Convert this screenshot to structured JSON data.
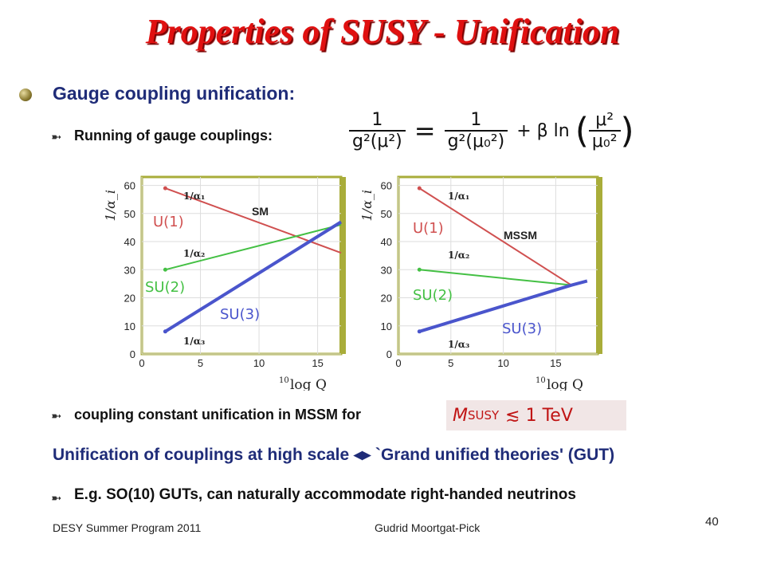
{
  "slide": {
    "title": "Properties of SUSY - Unification",
    "heading": "Gauge coupling unification:",
    "running_label": "Running of gauge couplings:",
    "formula": {
      "lhs_num": "1",
      "lhs_den": "g²(μ²)",
      "equals": "=",
      "rhs_num": "1",
      "rhs_den": "g²(μ₀²)",
      "plus_term": "+ β ln",
      "log_num": "μ²",
      "log_den": "μ₀²"
    },
    "coupling_label": "coupling constant unification in MSSM for",
    "msusy_text": "M",
    "msusy_sub": "SUSY",
    "msusy_rel": "≲ 1 TeV",
    "banner": "Unification of couplings at high scale ◂▸ `Grand unified theories' (GUT)",
    "example": "E.g. SO(10) GUTs, can naturally accommodate right-handed neutrinos",
    "footer_left": "DESY Summer Program 2011",
    "footer_center": "Gudrid Moortgat-Pick",
    "page_number": "40"
  },
  "colors": {
    "title": "#e01010",
    "heading": "#1f2c78",
    "u1": "#d05050",
    "su2": "#44c044",
    "su3": "#4a55cc",
    "frame": "#a9ad3a"
  },
  "chart_data": [
    {
      "type": "line",
      "title": "SM",
      "ylabel": "1/α_i",
      "xlabel": "log Q",
      "xlabel_prefix": "10",
      "xlim": [
        0,
        17
      ],
      "ylim": [
        0,
        63
      ],
      "xticks": [
        0,
        5,
        10,
        15
      ],
      "yticks": [
        0,
        10,
        20,
        30,
        40,
        50,
        60
      ],
      "grid": true,
      "series": [
        {
          "name": "1/α₁",
          "group_label": "U(1)",
          "color": "#d05050",
          "x": [
            2,
            17
          ],
          "y": [
            59,
            36
          ]
        },
        {
          "name": "1/α₂",
          "group_label": "SU(2)",
          "color": "#44c044",
          "x": [
            2,
            17
          ],
          "y": [
            30,
            46
          ]
        },
        {
          "name": "1/α₃",
          "group_label": "SU(3)",
          "color": "#4a55cc",
          "x": [
            2,
            17
          ],
          "y": [
            8,
            47
          ]
        }
      ]
    },
    {
      "type": "line",
      "title": "MSSM",
      "ylabel": "1/α_i",
      "xlabel": "log Q",
      "xlabel_prefix": "10",
      "xlim": [
        0,
        19
      ],
      "ylim": [
        0,
        63
      ],
      "xticks": [
        0,
        5,
        10,
        15
      ],
      "yticks": [
        0,
        10,
        20,
        30,
        40,
        50,
        60
      ],
      "grid": true,
      "series": [
        {
          "name": "1/α₁",
          "group_label": "U(1)",
          "color": "#d05050",
          "x": [
            2,
            16.5
          ],
          "y": [
            59,
            24.5
          ]
        },
        {
          "name": "1/α₂",
          "group_label": "SU(2)",
          "color": "#44c044",
          "x": [
            2,
            16.5
          ],
          "y": [
            30,
            24.5
          ]
        },
        {
          "name": "1/α₃",
          "group_label": "SU(3)",
          "color": "#4a55cc",
          "x": [
            2,
            16.5,
            18
          ],
          "y": [
            8,
            24.5,
            26
          ]
        }
      ]
    }
  ]
}
